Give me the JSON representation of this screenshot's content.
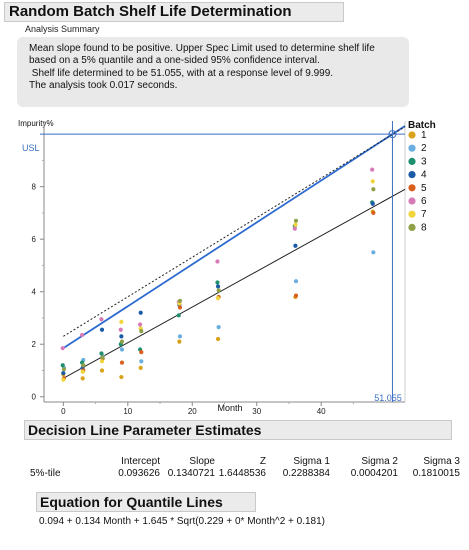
{
  "title": "Random Batch Shelf Life Determination",
  "analysis_summary": {
    "heading": "Analysis Summary",
    "lines": [
      "Mean slope found to be positive. Upper Spec Limit used to determine shelf life",
      "based on a 5% quantile and a one-sided 95% confidence interval.",
      " Shelf life determined to be 51.055, with at a response level of 9.999.",
      "The analysis took 0.017 seconds."
    ]
  },
  "chart_data": {
    "type": "scatter",
    "ylabel": "Impurity%",
    "xlabel": "Month",
    "xlim": [
      -3,
      53
    ],
    "ylim": [
      -0.2,
      10.5
    ],
    "x_ticks": [
      0,
      10,
      20,
      30,
      40
    ],
    "y_ticks": [
      0,
      2,
      4,
      6,
      8
    ],
    "usl_label": "USL",
    "usl_value": 10.0,
    "shelf_life_label": "51.055",
    "shelf_life_x": 51.055,
    "legend": {
      "title": "Batch",
      "placement": "right"
    },
    "series": [
      {
        "name": "1",
        "color": "#d9a21b",
        "points": [
          [
            0,
            0.85
          ],
          [
            3,
            0.7
          ],
          [
            6,
            1.0
          ],
          [
            9,
            0.75
          ],
          [
            12,
            1.1
          ],
          [
            18,
            2.1
          ],
          [
            24,
            2.2
          ],
          [
            36,
            3.8
          ],
          [
            48,
            7.05
          ]
        ]
      },
      {
        "name": "2",
        "color": "#6aaee0",
        "points": [
          [
            0,
            1.1
          ],
          [
            3,
            1.4
          ],
          [
            6,
            1.55
          ],
          [
            9,
            1.8
          ],
          [
            12,
            1.35
          ],
          [
            18,
            2.3
          ],
          [
            24,
            2.65
          ],
          [
            36,
            4.4
          ],
          [
            48,
            5.5
          ]
        ]
      },
      {
        "name": "3",
        "color": "#1f8f6f",
        "points": [
          [
            0,
            1.2
          ],
          [
            3,
            1.3
          ],
          [
            6,
            1.65
          ],
          [
            9,
            2.0
          ],
          [
            12,
            1.8
          ],
          [
            18,
            3.1
          ],
          [
            24,
            4.35
          ],
          [
            36,
            6.5
          ],
          [
            48,
            7.4
          ]
        ]
      },
      {
        "name": "4",
        "color": "#1a5aa6",
        "points": [
          [
            0,
            0.9
          ],
          [
            3,
            1.1
          ],
          [
            6,
            2.55
          ],
          [
            9,
            2.3
          ],
          [
            12,
            3.2
          ],
          [
            18,
            3.5
          ],
          [
            24,
            4.2
          ],
          [
            36,
            5.75
          ],
          [
            48,
            7.35
          ]
        ]
      },
      {
        "name": "5",
        "color": "#d95f1e",
        "points": [
          [
            0,
            0.7
          ],
          [
            3,
            1.0
          ],
          [
            6,
            1.45
          ],
          [
            9,
            1.3
          ],
          [
            12,
            1.7
          ],
          [
            18,
            3.4
          ],
          [
            24,
            3.8
          ],
          [
            36,
            3.85
          ],
          [
            48,
            7.0
          ]
        ]
      },
      {
        "name": "6",
        "color": "#d67ab8",
        "points": [
          [
            0,
            1.85
          ],
          [
            3,
            2.35
          ],
          [
            6,
            2.95
          ],
          [
            9,
            2.55
          ],
          [
            12,
            2.75
          ],
          [
            18,
            3.6
          ],
          [
            24,
            5.15
          ],
          [
            36,
            6.4
          ],
          [
            48,
            8.65
          ]
        ]
      },
      {
        "name": "7",
        "color": "#f0d53c",
        "points": [
          [
            0,
            0.65
          ],
          [
            3,
            0.95
          ],
          [
            6,
            1.35
          ],
          [
            9,
            2.85
          ],
          [
            12,
            2.6
          ],
          [
            18,
            3.55
          ],
          [
            24,
            3.75
          ],
          [
            36,
            6.55
          ],
          [
            48,
            8.2
          ]
        ]
      },
      {
        "name": "8",
        "color": "#8fa048",
        "points": [
          [
            0,
            1.05
          ],
          [
            3,
            1.2
          ],
          [
            6,
            1.5
          ],
          [
            9,
            2.1
          ],
          [
            12,
            2.5
          ],
          [
            18,
            3.65
          ],
          [
            24,
            4.05
          ],
          [
            36,
            6.7
          ],
          [
            48,
            7.9
          ]
        ]
      }
    ],
    "lines": [
      {
        "name": "mean",
        "style": "solid-black",
        "intercept": 0.7,
        "slope": 0.1358
      },
      {
        "name": "upper",
        "style": "solid-blue",
        "intercept": 1.85,
        "slope": 0.1596
      },
      {
        "name": "confidence",
        "style": "dotted-black",
        "intercept": 2.3,
        "slope": 0.1506
      }
    ],
    "crosshair": {
      "x": 51.055,
      "y": 10.0,
      "color": "#3b6fc2"
    }
  },
  "decision_line": {
    "heading": "Decision Line Parameter Estimates",
    "columns": [
      "Intercept",
      "Slope",
      "Z",
      "Sigma 1",
      "Sigma 2",
      "Sigma 3"
    ],
    "row_label": "5%-tile",
    "values": [
      "0.093626",
      "0.1340721",
      "1.6448536",
      "0.2288384",
      "0.0004201",
      "0.1810015"
    ]
  },
  "equation": {
    "heading": "Equation for Quantile Lines",
    "text": "0.094 + 0.134 Month + 1.645 * Sqrt(0.229 + 0* Month^2 + 0.181)"
  }
}
